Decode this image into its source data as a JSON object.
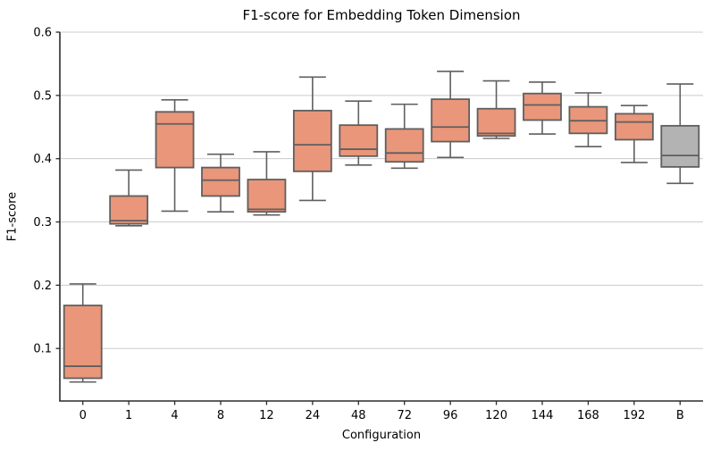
{
  "figure": {
    "title": "F1-score for Embedding Token Dimension",
    "xlabel": "Configuration",
    "ylabel": "F1-score"
  },
  "chart_data": {
    "type": "boxplot",
    "title": "F1-score for Embedding Token Dimension",
    "xlabel": "Configuration",
    "ylabel": "F1-score",
    "categories": [
      "0",
      "1",
      "4",
      "8",
      "12",
      "24",
      "48",
      "72",
      "96",
      "120",
      "144",
      "168",
      "192",
      "B"
    ],
    "ytick_labels": [
      "0.1",
      "0.2",
      "0.3",
      "0.4",
      "0.5",
      "0.6"
    ],
    "yticks": [
      0.1,
      0.2,
      0.3,
      0.4,
      0.5,
      0.6
    ],
    "ylim": [
      0.017,
      0.6
    ],
    "grid": true,
    "legend": "none",
    "boxes": [
      {
        "label": "0",
        "whislo": 0.047,
        "q1": 0.053,
        "med": 0.072,
        "q3": 0.168,
        "whishi": 0.202
      },
      {
        "label": "1",
        "whislo": 0.294,
        "q1": 0.297,
        "med": 0.302,
        "q3": 0.341,
        "whishi": 0.382
      },
      {
        "label": "4",
        "whislo": 0.317,
        "q1": 0.386,
        "med": 0.455,
        "q3": 0.474,
        "whishi": 0.493
      },
      {
        "label": "8",
        "whislo": 0.316,
        "q1": 0.341,
        "med": 0.366,
        "q3": 0.386,
        "whishi": 0.407
      },
      {
        "label": "12",
        "whislo": 0.311,
        "q1": 0.316,
        "med": 0.32,
        "q3": 0.367,
        "whishi": 0.411
      },
      {
        "label": "24",
        "whislo": 0.334,
        "q1": 0.38,
        "med": 0.422,
        "q3": 0.476,
        "whishi": 0.529
      },
      {
        "label": "48",
        "whislo": 0.39,
        "q1": 0.404,
        "med": 0.415,
        "q3": 0.453,
        "whishi": 0.491
      },
      {
        "label": "72",
        "whislo": 0.385,
        "q1": 0.395,
        "med": 0.409,
        "q3": 0.447,
        "whishi": 0.486
      },
      {
        "label": "96",
        "whislo": 0.402,
        "q1": 0.427,
        "med": 0.45,
        "q3": 0.494,
        "whishi": 0.538
      },
      {
        "label": "120",
        "whislo": 0.432,
        "q1": 0.436,
        "med": 0.44,
        "q3": 0.479,
        "whishi": 0.523
      },
      {
        "label": "144",
        "whislo": 0.439,
        "q1": 0.461,
        "med": 0.485,
        "q3": 0.503,
        "whishi": 0.521
      },
      {
        "label": "168",
        "whislo": 0.419,
        "q1": 0.44,
        "med": 0.46,
        "q3": 0.482,
        "whishi": 0.504
      },
      {
        "label": "192",
        "whislo": 0.394,
        "q1": 0.43,
        "med": 0.458,
        "q3": 0.471,
        "whishi": 0.484
      },
      {
        "label": "B",
        "whislo": 0.361,
        "q1": 0.387,
        "med": 0.405,
        "q3": 0.452,
        "whishi": 0.518
      }
    ],
    "colors": {
      "box_fill": "#E9967A",
      "baseline_box_fill": "#B3B3B3",
      "box_edge": "#5F5F5F",
      "grid": "#CCCCCC",
      "spine": "#2B2B2B",
      "text": "#000000",
      "background": "#FFFFFF"
    }
  }
}
